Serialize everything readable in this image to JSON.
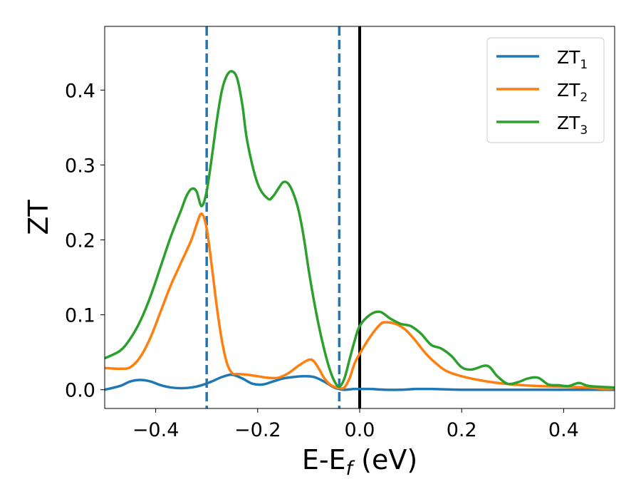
{
  "chart_data": {
    "type": "line",
    "xlabel": {
      "main": "E-E",
      "sub": "f",
      "unit": " (eV)"
    },
    "ylabel": "ZT",
    "xlim": [
      -0.5,
      0.5
    ],
    "ylim": [
      -0.025,
      0.485
    ],
    "xticks": [
      -0.4,
      -0.2,
      0.0,
      0.2,
      0.4
    ],
    "xtick_labels": [
      "−0.4",
      "−0.2",
      "0.0",
      "0.2",
      "0.4"
    ],
    "yticks": [
      0.0,
      0.1,
      0.2,
      0.3,
      0.4
    ],
    "ytick_labels": [
      "0.0",
      "0.1",
      "0.2",
      "0.3",
      "0.4"
    ],
    "grid": false,
    "legend": {
      "placement": "top-right"
    },
    "vlines": [
      {
        "x": -0.3,
        "style": "dashed",
        "color": "#1f77b4"
      },
      {
        "x": -0.04,
        "style": "dashed",
        "color": "#1f77b4"
      },
      {
        "x": 0.0,
        "style": "solid",
        "color": "#000000"
      }
    ],
    "series": [
      {
        "name": "ZT",
        "sub": "1",
        "color": "#1f77b4",
        "x": [
          -0.5,
          -0.47,
          -0.45,
          -0.43,
          -0.41,
          -0.39,
          -0.37,
          -0.35,
          -0.33,
          -0.31,
          -0.29,
          -0.27,
          -0.25,
          -0.23,
          -0.21,
          -0.19,
          -0.17,
          -0.15,
          -0.13,
          -0.11,
          -0.09,
          -0.07,
          -0.05,
          -0.04,
          -0.03,
          -0.01,
          0.0,
          0.02,
          0.05,
          0.08,
          0.11,
          0.14,
          0.2,
          0.3,
          0.4,
          0.5
        ],
        "y": [
          0.0,
          0.005,
          0.011,
          0.013,
          0.011,
          0.006,
          0.003,
          0.002,
          0.003,
          0.006,
          0.011,
          0.017,
          0.02,
          0.015,
          0.008,
          0.007,
          0.011,
          0.015,
          0.017,
          0.018,
          0.017,
          0.011,
          0.003,
          0.001,
          0.0,
          0.001,
          0.001,
          0.001,
          0.0,
          0.0,
          0.001,
          0.001,
          0.0,
          0.0,
          0.0,
          0.0
        ]
      },
      {
        "name": "ZT",
        "sub": "2",
        "color": "#ff7f0e",
        "x": [
          -0.5,
          -0.47,
          -0.45,
          -0.43,
          -0.41,
          -0.39,
          -0.37,
          -0.35,
          -0.33,
          -0.32,
          -0.31,
          -0.3,
          -0.29,
          -0.28,
          -0.27,
          -0.26,
          -0.25,
          -0.24,
          -0.22,
          -0.2,
          -0.18,
          -0.16,
          -0.14,
          -0.12,
          -0.1,
          -0.09,
          -0.08,
          -0.07,
          -0.06,
          -0.05,
          -0.04,
          -0.03,
          -0.02,
          -0.01,
          0.0,
          0.02,
          0.04,
          0.05,
          0.07,
          0.09,
          0.11,
          0.13,
          0.15,
          0.17,
          0.2,
          0.25,
          0.3,
          0.35,
          0.4,
          0.45,
          0.48,
          0.5
        ],
        "y": [
          0.029,
          0.028,
          0.03,
          0.044,
          0.07,
          0.105,
          0.14,
          0.17,
          0.2,
          0.22,
          0.235,
          0.215,
          0.165,
          0.11,
          0.065,
          0.035,
          0.022,
          0.021,
          0.02,
          0.018,
          0.016,
          0.016,
          0.022,
          0.032,
          0.04,
          0.038,
          0.028,
          0.016,
          0.008,
          0.004,
          0.002,
          0.003,
          0.015,
          0.035,
          0.048,
          0.07,
          0.087,
          0.09,
          0.088,
          0.08,
          0.065,
          0.048,
          0.035,
          0.025,
          0.018,
          0.011,
          0.007,
          0.005,
          0.004,
          0.003,
          0.001,
          0.002
        ]
      },
      {
        "name": "ZT",
        "sub": "3",
        "color": "#2ca02c",
        "x": [
          -0.5,
          -0.47,
          -0.45,
          -0.43,
          -0.41,
          -0.39,
          -0.37,
          -0.35,
          -0.34,
          -0.33,
          -0.32,
          -0.31,
          -0.3,
          -0.29,
          -0.28,
          -0.27,
          -0.26,
          -0.25,
          -0.24,
          -0.23,
          -0.22,
          -0.2,
          -0.18,
          -0.17,
          -0.16,
          -0.15,
          -0.14,
          -0.13,
          -0.12,
          -0.11,
          -0.1,
          -0.09,
          -0.08,
          -0.07,
          -0.06,
          -0.05,
          -0.04,
          -0.03,
          -0.02,
          -0.01,
          0.0,
          0.02,
          0.04,
          0.06,
          0.08,
          0.1,
          0.12,
          0.14,
          0.16,
          0.18,
          0.2,
          0.22,
          0.25,
          0.27,
          0.29,
          0.31,
          0.33,
          0.35,
          0.37,
          0.39,
          0.41,
          0.43,
          0.45,
          0.5
        ],
        "y": [
          0.042,
          0.052,
          0.068,
          0.092,
          0.125,
          0.165,
          0.205,
          0.24,
          0.258,
          0.268,
          0.265,
          0.245,
          0.265,
          0.31,
          0.36,
          0.4,
          0.42,
          0.425,
          0.415,
          0.38,
          0.33,
          0.275,
          0.255,
          0.258,
          0.268,
          0.277,
          0.275,
          0.262,
          0.24,
          0.205,
          0.16,
          0.12,
          0.085,
          0.055,
          0.03,
          0.012,
          0.004,
          0.015,
          0.04,
          0.065,
          0.085,
          0.1,
          0.104,
          0.095,
          0.088,
          0.085,
          0.075,
          0.06,
          0.055,
          0.045,
          0.03,
          0.027,
          0.032,
          0.018,
          0.008,
          0.01,
          0.015,
          0.016,
          0.007,
          0.006,
          0.005,
          0.009,
          0.005,
          0.003
        ]
      }
    ]
  }
}
